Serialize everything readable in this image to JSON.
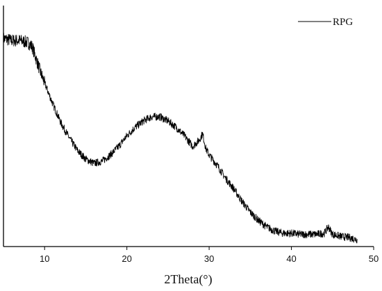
{
  "chart_data": {
    "type": "line",
    "title": "",
    "xlabel": "2Theta(°)",
    "ylabel": "",
    "xlim": [
      5,
      50
    ],
    "ylim": [
      0,
      1
    ],
    "x_ticks": [
      10,
      20,
      30,
      40,
      50
    ],
    "y_ticks_shown": false,
    "grid": false,
    "legend_position": "top-right",
    "line_color": "#000000",
    "series": [
      {
        "name": "RPG",
        "x": [
          5,
          6,
          7,
          8,
          8.5,
          9,
          9.5,
          10,
          11,
          12,
          13,
          14,
          15,
          16,
          17,
          18,
          19,
          20,
          21,
          22,
          23,
          24,
          25,
          26,
          27,
          28,
          28.8,
          29.2,
          29.6,
          30,
          31,
          32,
          33,
          34,
          35,
          36,
          37,
          38,
          39,
          40,
          41,
          42,
          43,
          44,
          44.5,
          45,
          46,
          47,
          48
        ],
        "y": [
          0.95,
          0.94,
          0.94,
          0.93,
          0.91,
          0.85,
          0.79,
          0.74,
          0.64,
          0.55,
          0.48,
          0.42,
          0.38,
          0.36,
          0.37,
          0.4,
          0.44,
          0.49,
          0.53,
          0.56,
          0.58,
          0.58,
          0.56,
          0.53,
          0.49,
          0.44,
          0.47,
          0.5,
          0.43,
          0.4,
          0.35,
          0.29,
          0.24,
          0.18,
          0.13,
          0.09,
          0.06,
          0.04,
          0.03,
          0.03,
          0.025,
          0.025,
          0.025,
          0.03,
          0.06,
          0.025,
          0.015,
          0.01,
          0.0
        ]
      }
    ]
  }
}
